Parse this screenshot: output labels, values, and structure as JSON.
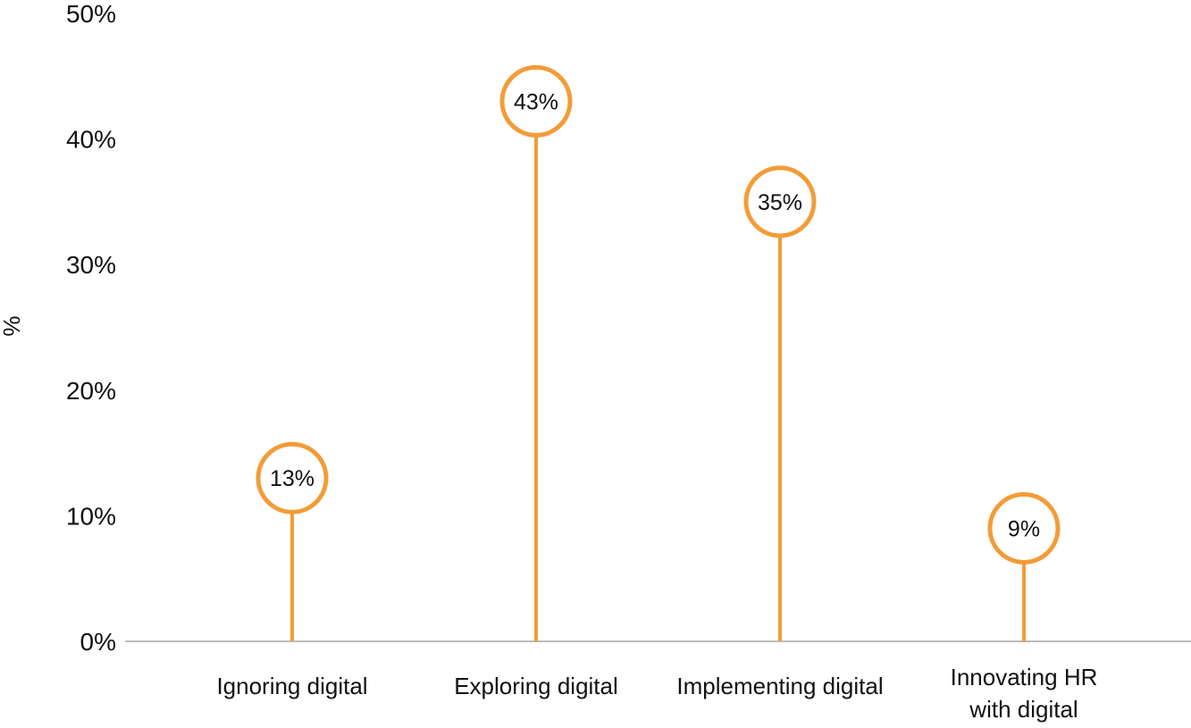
{
  "chart_data": {
    "type": "lollipop",
    "categories": [
      "Ignoring digital",
      "Exploring digital",
      "Implementing digital",
      [
        "Innovating HR",
        "with digital"
      ]
    ],
    "values": [
      13,
      43,
      35,
      9
    ],
    "data_labels": [
      "13%",
      "43%",
      "35%",
      "9%"
    ],
    "ylabel": "%",
    "ylim": [
      0,
      50
    ],
    "yticks": [
      0,
      10,
      20,
      30,
      40,
      50
    ],
    "ytick_labels": [
      "0%",
      "10%",
      "20%",
      "30%",
      "40%",
      "50%"
    ],
    "grid": false,
    "legend": "none",
    "colors": {
      "marker": "#F39C38",
      "baseline": "#A6A6A6"
    }
  }
}
